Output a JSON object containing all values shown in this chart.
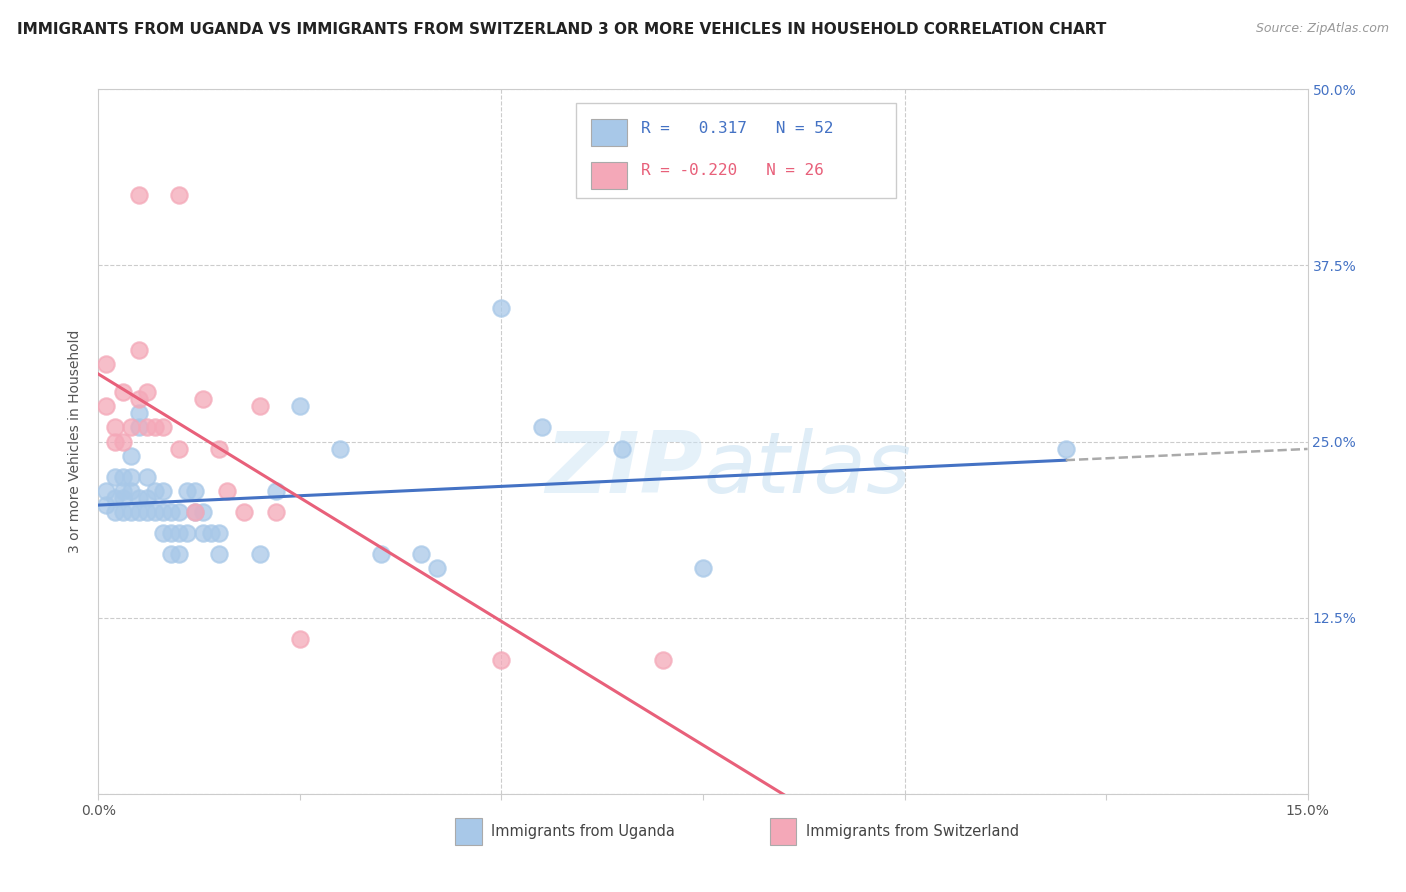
{
  "title": "IMMIGRANTS FROM UGANDA VS IMMIGRANTS FROM SWITZERLAND 3 OR MORE VEHICLES IN HOUSEHOLD CORRELATION CHART",
  "source": "Source: ZipAtlas.com",
  "ylabel": "3 or more Vehicles in Household",
  "xlim": [
    0.0,
    0.15
  ],
  "ylim": [
    0.0,
    0.5
  ],
  "uganda_color": "#a8c8e8",
  "switzerland_color": "#f4a8b8",
  "uganda_line_color": "#4472c4",
  "switzerland_line_color": "#e8607a",
  "uganda_R": 0.317,
  "uganda_N": 52,
  "switzerland_R": -0.22,
  "switzerland_N": 26,
  "background_color": "#ffffff",
  "uganda_scatter": [
    [
      0.001,
      0.205
    ],
    [
      0.001,
      0.215
    ],
    [
      0.002,
      0.21
    ],
    [
      0.002,
      0.225
    ],
    [
      0.002,
      0.2
    ],
    [
      0.003,
      0.21
    ],
    [
      0.003,
      0.225
    ],
    [
      0.003,
      0.2
    ],
    [
      0.003,
      0.215
    ],
    [
      0.004,
      0.215
    ],
    [
      0.004,
      0.2
    ],
    [
      0.004,
      0.225
    ],
    [
      0.004,
      0.24
    ],
    [
      0.005,
      0.26
    ],
    [
      0.005,
      0.27
    ],
    [
      0.005,
      0.21
    ],
    [
      0.005,
      0.2
    ],
    [
      0.006,
      0.2
    ],
    [
      0.006,
      0.21
    ],
    [
      0.006,
      0.225
    ],
    [
      0.007,
      0.2
    ],
    [
      0.007,
      0.215
    ],
    [
      0.008,
      0.215
    ],
    [
      0.008,
      0.2
    ],
    [
      0.008,
      0.185
    ],
    [
      0.009,
      0.185
    ],
    [
      0.009,
      0.17
    ],
    [
      0.009,
      0.2
    ],
    [
      0.01,
      0.185
    ],
    [
      0.01,
      0.17
    ],
    [
      0.01,
      0.2
    ],
    [
      0.011,
      0.215
    ],
    [
      0.011,
      0.185
    ],
    [
      0.012,
      0.215
    ],
    [
      0.012,
      0.2
    ],
    [
      0.013,
      0.2
    ],
    [
      0.013,
      0.185
    ],
    [
      0.014,
      0.185
    ],
    [
      0.015,
      0.17
    ],
    [
      0.015,
      0.185
    ],
    [
      0.02,
      0.17
    ],
    [
      0.022,
      0.215
    ],
    [
      0.025,
      0.275
    ],
    [
      0.03,
      0.245
    ],
    [
      0.035,
      0.17
    ],
    [
      0.04,
      0.17
    ],
    [
      0.042,
      0.16
    ],
    [
      0.05,
      0.345
    ],
    [
      0.055,
      0.26
    ],
    [
      0.065,
      0.245
    ],
    [
      0.075,
      0.16
    ],
    [
      0.12,
      0.245
    ]
  ],
  "switzerland_scatter": [
    [
      0.001,
      0.305
    ],
    [
      0.001,
      0.275
    ],
    [
      0.002,
      0.26
    ],
    [
      0.002,
      0.25
    ],
    [
      0.003,
      0.285
    ],
    [
      0.003,
      0.25
    ],
    [
      0.004,
      0.26
    ],
    [
      0.005,
      0.28
    ],
    [
      0.005,
      0.315
    ],
    [
      0.005,
      0.425
    ],
    [
      0.006,
      0.285
    ],
    [
      0.006,
      0.26
    ],
    [
      0.007,
      0.26
    ],
    [
      0.008,
      0.26
    ],
    [
      0.01,
      0.245
    ],
    [
      0.01,
      0.425
    ],
    [
      0.012,
      0.2
    ],
    [
      0.013,
      0.28
    ],
    [
      0.015,
      0.245
    ],
    [
      0.016,
      0.215
    ],
    [
      0.018,
      0.2
    ],
    [
      0.02,
      0.275
    ],
    [
      0.022,
      0.2
    ],
    [
      0.025,
      0.11
    ],
    [
      0.05,
      0.095
    ],
    [
      0.07,
      0.095
    ]
  ],
  "title_fontsize": 11,
  "axis_label_fontsize": 10,
  "tick_fontsize": 10,
  "source_fontsize": 9
}
